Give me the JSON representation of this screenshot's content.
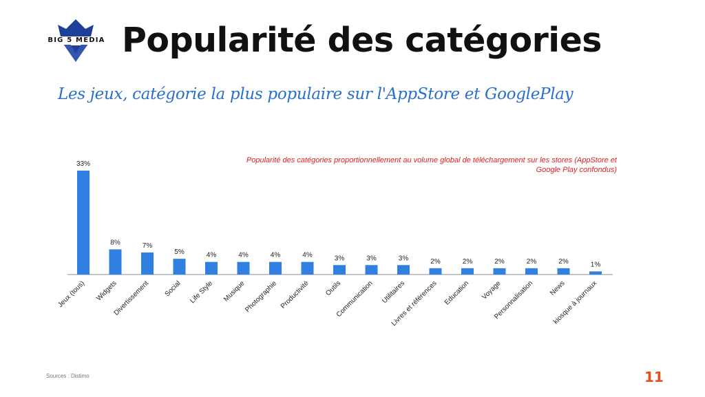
{
  "brand": {
    "logo_text": "BIG 5 MEDIA",
    "logo_color": "#1e3f9a"
  },
  "title": "Popularité des catégories",
  "subtitle": "Les jeux, catégorie la plus populaire sur l'AppStore et GooglePlay",
  "chart_data": {
    "type": "bar",
    "title_lines": [
      "Popularité des catégories proportionnellement au volume global de téléchargement sur les stores (AppStore et",
      "Google Play confondus)"
    ],
    "title_color": "#e02020",
    "bar_color": "#2f80e0",
    "categories": [
      "Jeux (tous)",
      "Widgets",
      "Divertissement",
      "Social",
      "Life Style",
      "Musique",
      "Photographie",
      "Productivité",
      "Outils",
      "Communication",
      "Utilitaires",
      "Livres et références",
      "Education",
      "Voyage",
      "Personnalisation",
      "News",
      "kiosque à journaux"
    ],
    "values": [
      33,
      8,
      7,
      5,
      4,
      4,
      4,
      4,
      3,
      3,
      3,
      2,
      2,
      2,
      2,
      2,
      1
    ],
    "data_labels": [
      "33%",
      "8%",
      "7%",
      "5%",
      "4%",
      "4%",
      "4%",
      "4%",
      "3%",
      "3%",
      "3%",
      "2%",
      "2%",
      "2%",
      "2%",
      "2%",
      "1%"
    ],
    "ylim": [
      0,
      35
    ],
    "grid": false,
    "xlabel": "",
    "ylabel": ""
  },
  "source": "Sources : Distimo",
  "page_number": "11"
}
